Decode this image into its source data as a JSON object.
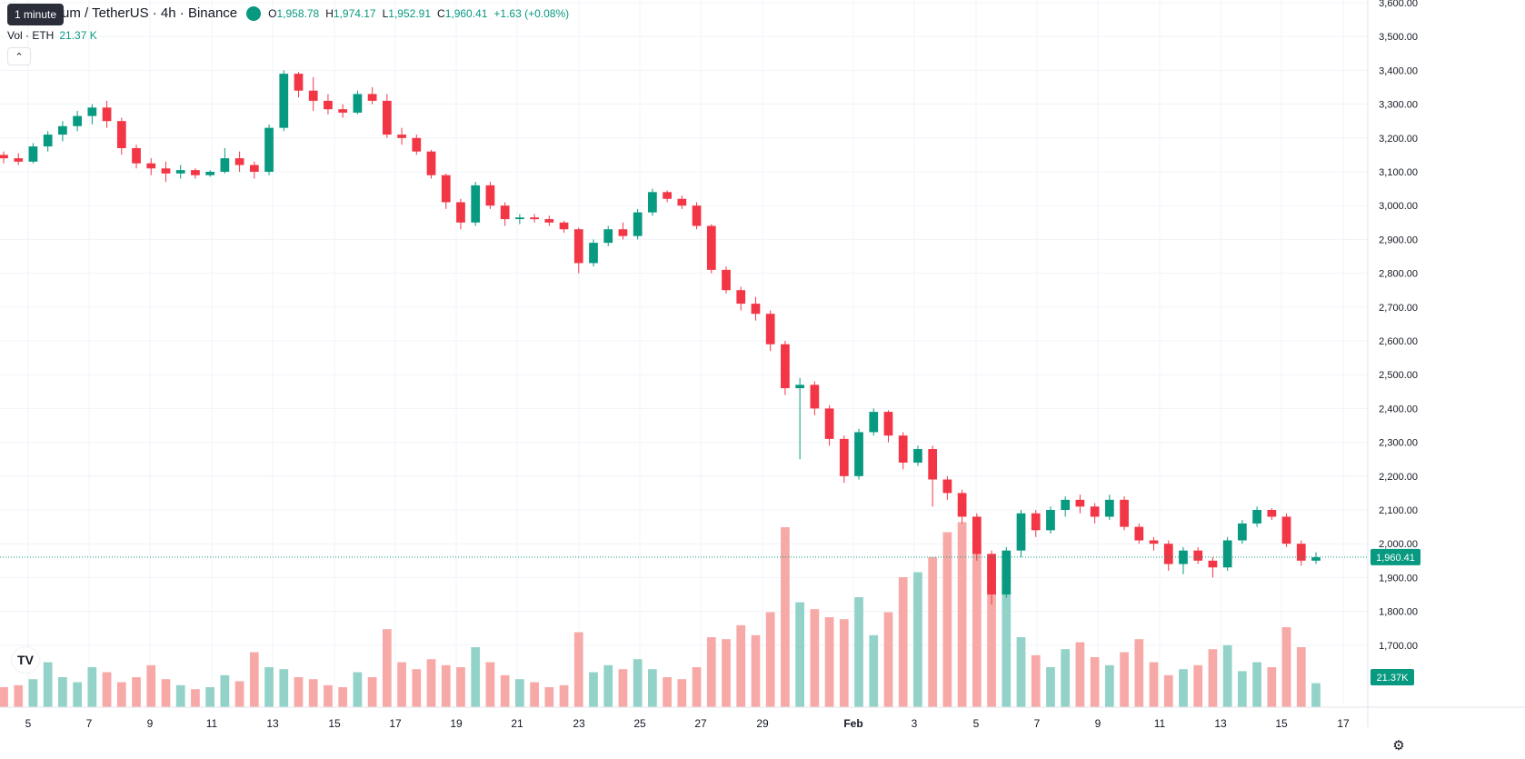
{
  "legend": {
    "symbol": "um / TetherUS · 4h · Binance",
    "o_label": "O",
    "o": "1,958.78",
    "h_label": "H",
    "h": "1,974.17",
    "l_label": "L",
    "l": "1,952.91",
    "c_label": "C",
    "c": "1,960.41",
    "change": "+1.63 (+0.08%)"
  },
  "tooltip": "1 minute",
  "volume_legend": {
    "label": "Vol · ETH",
    "value": "21.37 K"
  },
  "collapse_icon": "chevron-up-icon",
  "logo": "tradingview-logo",
  "settings_icon": "gear-icon",
  "colors": {
    "up": "#089981",
    "down": "#f23645",
    "up_vol": "#93d2c8",
    "down_vol": "#f7a9a7",
    "grid": "#f0f3fa"
  },
  "price_axis": {
    "ticks": [
      "3,600.00",
      "3,500.00",
      "3,400.00",
      "3,300.00",
      "3,200.00",
      "3,100.00",
      "3,000.00",
      "2,900.00",
      "2,800.00",
      "2,700.00",
      "2,600.00",
      "2,500.00",
      "2,400.00",
      "2,300.00",
      "2,200.00",
      "2,100.00",
      "2,000.00",
      "1,900.00",
      "1,800.00",
      "1,700.00"
    ],
    "current_price": "1,960.41",
    "volume_label": "21.37K"
  },
  "time_axis": {
    "ticks": [
      "5",
      "7",
      "9",
      "11",
      "13",
      "15",
      "17",
      "19",
      "21",
      "23",
      "25",
      "27",
      "29",
      "Feb",
      "3",
      "5",
      "7",
      "9",
      "11",
      "13",
      "15",
      "17"
    ]
  },
  "chart_data": {
    "type": "candlestick",
    "title": "um / TetherUS · 4h · Binance",
    "ylim": [
      1650,
      3600
    ],
    "candles": [
      [
        3150,
        3160,
        3125,
        3140
      ],
      [
        3140,
        3155,
        3120,
        3130
      ],
      [
        3130,
        3185,
        3125,
        3175
      ],
      [
        3175,
        3220,
        3160,
        3210
      ],
      [
        3210,
        3250,
        3190,
        3235
      ],
      [
        3235,
        3280,
        3220,
        3265
      ],
      [
        3265,
        3300,
        3240,
        3290
      ],
      [
        3290,
        3310,
        3230,
        3250
      ],
      [
        3250,
        3260,
        3150,
        3170
      ],
      [
        3170,
        3180,
        3110,
        3125
      ],
      [
        3125,
        3140,
        3090,
        3110
      ],
      [
        3110,
        3130,
        3070,
        3095
      ],
      [
        3095,
        3120,
        3080,
        3105
      ],
      [
        3105,
        3110,
        3080,
        3090
      ],
      [
        3090,
        3105,
        3085,
        3100
      ],
      [
        3100,
        3170,
        3095,
        3140
      ],
      [
        3140,
        3160,
        3100,
        3120
      ],
      [
        3120,
        3130,
        3080,
        3100
      ],
      [
        3100,
        3240,
        3090,
        3230
      ],
      [
        3230,
        3400,
        3220,
        3390
      ],
      [
        3390,
        3395,
        3320,
        3340
      ],
      [
        3340,
        3380,
        3280,
        3310
      ],
      [
        3310,
        3330,
        3270,
        3285
      ],
      [
        3285,
        3300,
        3260,
        3275
      ],
      [
        3275,
        3340,
        3270,
        3330
      ],
      [
        3330,
        3350,
        3300,
        3310
      ],
      [
        3310,
        3330,
        3200,
        3210
      ],
      [
        3210,
        3230,
        3180,
        3200
      ],
      [
        3200,
        3210,
        3150,
        3160
      ],
      [
        3160,
        3165,
        3080,
        3090
      ],
      [
        3090,
        3095,
        2990,
        3010
      ],
      [
        3010,
        3020,
        2930,
        2950
      ],
      [
        2950,
        3070,
        2940,
        3060
      ],
      [
        3060,
        3070,
        2990,
        3000
      ],
      [
        3000,
        3010,
        2940,
        2960
      ],
      [
        2960,
        2975,
        2945,
        2965
      ],
      [
        2965,
        2975,
        2950,
        2960
      ],
      [
        2960,
        2970,
        2940,
        2950
      ],
      [
        2950,
        2955,
        2920,
        2930
      ],
      [
        2930,
        2935,
        2800,
        2830
      ],
      [
        2830,
        2900,
        2820,
        2890
      ],
      [
        2890,
        2940,
        2880,
        2930
      ],
      [
        2930,
        2950,
        2900,
        2910
      ],
      [
        2910,
        2990,
        2900,
        2980
      ],
      [
        2980,
        3050,
        2970,
        3040
      ],
      [
        3040,
        3045,
        3010,
        3020
      ],
      [
        3020,
        3030,
        2990,
        3000
      ],
      [
        3000,
        3010,
        2930,
        2940
      ],
      [
        2940,
        2945,
        2800,
        2810
      ],
      [
        2810,
        2820,
        2740,
        2750
      ],
      [
        2750,
        2760,
        2690,
        2710
      ],
      [
        2710,
        2730,
        2660,
        2680
      ],
      [
        2680,
        2690,
        2570,
        2590
      ],
      [
        2590,
        2600,
        2440,
        2460
      ],
      [
        2460,
        2490,
        2250,
        2470
      ],
      [
        2470,
        2480,
        2380,
        2400
      ],
      [
        2400,
        2410,
        2290,
        2310
      ],
      [
        2310,
        2320,
        2180,
        2200
      ],
      [
        2200,
        2340,
        2190,
        2330
      ],
      [
        2330,
        2400,
        2320,
        2390
      ],
      [
        2390,
        2395,
        2300,
        2320
      ],
      [
        2320,
        2330,
        2220,
        2240
      ],
      [
        2240,
        2290,
        2230,
        2280
      ],
      [
        2280,
        2290,
        2110,
        2190
      ],
      [
        2190,
        2200,
        2130,
        2150
      ],
      [
        2150,
        2160,
        2060,
        2080
      ],
      [
        2080,
        2090,
        1950,
        1970
      ],
      [
        1970,
        1980,
        1820,
        1850
      ],
      [
        1850,
        1990,
        1840,
        1980
      ],
      [
        1980,
        2100,
        1960,
        2090
      ],
      [
        2090,
        2100,
        2020,
        2040
      ],
      [
        2040,
        2110,
        2030,
        2100
      ],
      [
        2100,
        2140,
        2080,
        2130
      ],
      [
        2130,
        2145,
        2090,
        2110
      ],
      [
        2110,
        2120,
        2060,
        2080
      ],
      [
        2080,
        2145,
        2070,
        2130
      ],
      [
        2130,
        2140,
        2040,
        2050
      ],
      [
        2050,
        2060,
        2000,
        2010
      ],
      [
        2010,
        2020,
        1980,
        2000
      ],
      [
        2000,
        2010,
        1920,
        1940
      ],
      [
        1940,
        1990,
        1910,
        1980
      ],
      [
        1980,
        1990,
        1940,
        1950
      ],
      [
        1950,
        1960,
        1900,
        1930
      ],
      [
        1930,
        2020,
        1920,
        2010
      ],
      [
        2010,
        2070,
        2000,
        2060
      ],
      [
        2060,
        2110,
        2050,
        2100
      ],
      [
        2100,
        2105,
        2070,
        2080
      ],
      [
        2080,
        2090,
        1990,
        2000
      ],
      [
        2000,
        2010,
        1935,
        1950
      ],
      [
        1950,
        1975,
        1940,
        1960
      ]
    ],
    "volumes": [
      20,
      22,
      28,
      45,
      30,
      25,
      40,
      35,
      25,
      30,
      42,
      28,
      22,
      18,
      20,
      32,
      26,
      55,
      40,
      38,
      30,
      28,
      22,
      20,
      35,
      30,
      78,
      45,
      38,
      48,
      42,
      40,
      60,
      45,
      32,
      28,
      25,
      20,
      22,
      75,
      35,
      42,
      38,
      48,
      38,
      30,
      28,
      40,
      70,
      68,
      82,
      72,
      95,
      180,
      105,
      98,
      90,
      88,
      110,
      72,
      95,
      130,
      135,
      150,
      175,
      185,
      160,
      150,
      140,
      70,
      52,
      40,
      58,
      65,
      50,
      42,
      55,
      68,
      45,
      32,
      38,
      42,
      58,
      62,
      36,
      45,
      40,
      80,
      60,
      24
    ]
  }
}
